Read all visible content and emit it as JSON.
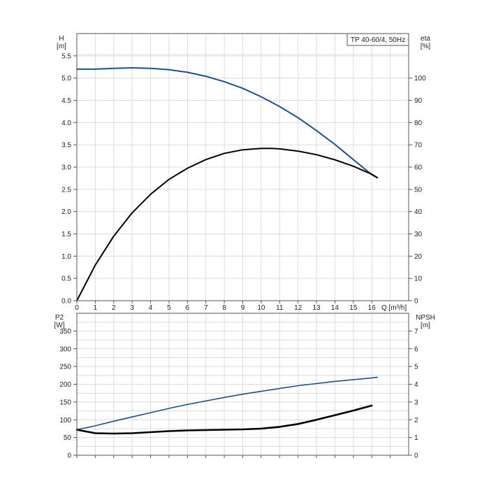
{
  "chart_data": [
    {
      "id": "performance",
      "type": "line",
      "title": "TP 40-60/4, 50Hz",
      "xlabel": "Q [m³/h]",
      "ylabel": "H",
      "ylabel_unit": "[m]",
      "y2label": "eta",
      "y2label_unit": "[%]",
      "xlim": [
        0,
        18
      ],
      "ylim": [
        0,
        6
      ],
      "y2lim": [
        0,
        120
      ],
      "x_ticks": [
        "0",
        "1",
        "2",
        "3",
        "4",
        "5",
        "6",
        "7",
        "8",
        "9",
        "10",
        "11",
        "12",
        "13",
        "14",
        "15",
        "16"
      ],
      "y_ticks": [
        "0.0",
        "0.5",
        "1.0",
        "1.5",
        "2.0",
        "2.5",
        "3.0",
        "3.5",
        "4.0",
        "4.5",
        "5.0",
        "5.5"
      ],
      "y2_ticks": [
        "0",
        "10",
        "20",
        "30",
        "40",
        "50",
        "60",
        "70",
        "80",
        "90",
        "100"
      ],
      "grid": true,
      "series": [
        {
          "axis": "left",
          "color": "#1f4e8c",
          "x": [
            0,
            1,
            2,
            3,
            4,
            5,
            6,
            7,
            8,
            9,
            10,
            11,
            12,
            13,
            14,
            15,
            16,
            16.3
          ],
          "values": [
            5.2,
            5.2,
            5.22,
            5.23,
            5.22,
            5.19,
            5.13,
            5.04,
            4.92,
            4.77,
            4.58,
            4.36,
            4.11,
            3.82,
            3.51,
            3.17,
            2.83,
            2.76
          ]
        },
        {
          "axis": "right",
          "color": "#000000",
          "x": [
            0,
            1,
            2,
            3,
            4,
            5,
            6,
            7,
            8,
            9,
            10,
            10.6,
            11,
            12,
            13,
            14,
            15,
            16,
            16.3
          ],
          "values": [
            0,
            16,
            29,
            39.5,
            47.8,
            54.5,
            59.5,
            63.4,
            66.2,
            67.8,
            68.4,
            68.4,
            68.2,
            67.2,
            65.6,
            63.3,
            60.4,
            56.8,
            55.3
          ]
        }
      ]
    },
    {
      "id": "power-npsh",
      "type": "line",
      "ylabel": "P2",
      "ylabel_unit": "[W]",
      "y2label": "NPSH",
      "y2label_unit": "[m]",
      "xlim": [
        0,
        18
      ],
      "ylim": [
        0,
        400
      ],
      "y2lim": [
        0,
        8
      ],
      "y_ticks": [
        "0",
        "50",
        "100",
        "150",
        "200",
        "250",
        "300",
        "350"
      ],
      "y2_ticks": [
        "0",
        "1",
        "2",
        "3",
        "4",
        "5",
        "6",
        "7"
      ],
      "grid": true,
      "series": [
        {
          "axis": "left",
          "color": "#1f4e8c",
          "x": [
            0,
            1,
            2,
            3,
            4,
            5,
            6,
            7,
            8,
            9,
            10,
            11,
            12,
            13,
            14,
            15,
            16,
            16.3
          ],
          "values": [
            72,
            83,
            96,
            108,
            120,
            132,
            143,
            153,
            163,
            172,
            180,
            188,
            196,
            202,
            208,
            213,
            218,
            220
          ]
        },
        {
          "axis": "left",
          "color": "#000000",
          "x": [
            0,
            1,
            2,
            3,
            4,
            5,
            6,
            7,
            8,
            9,
            10,
            11,
            12,
            13,
            14,
            15,
            16
          ],
          "values": [
            72,
            62,
            61,
            62,
            65,
            68,
            70,
            71,
            72,
            73,
            75,
            80,
            88,
            100,
            113,
            126,
            140
          ]
        }
      ]
    }
  ]
}
